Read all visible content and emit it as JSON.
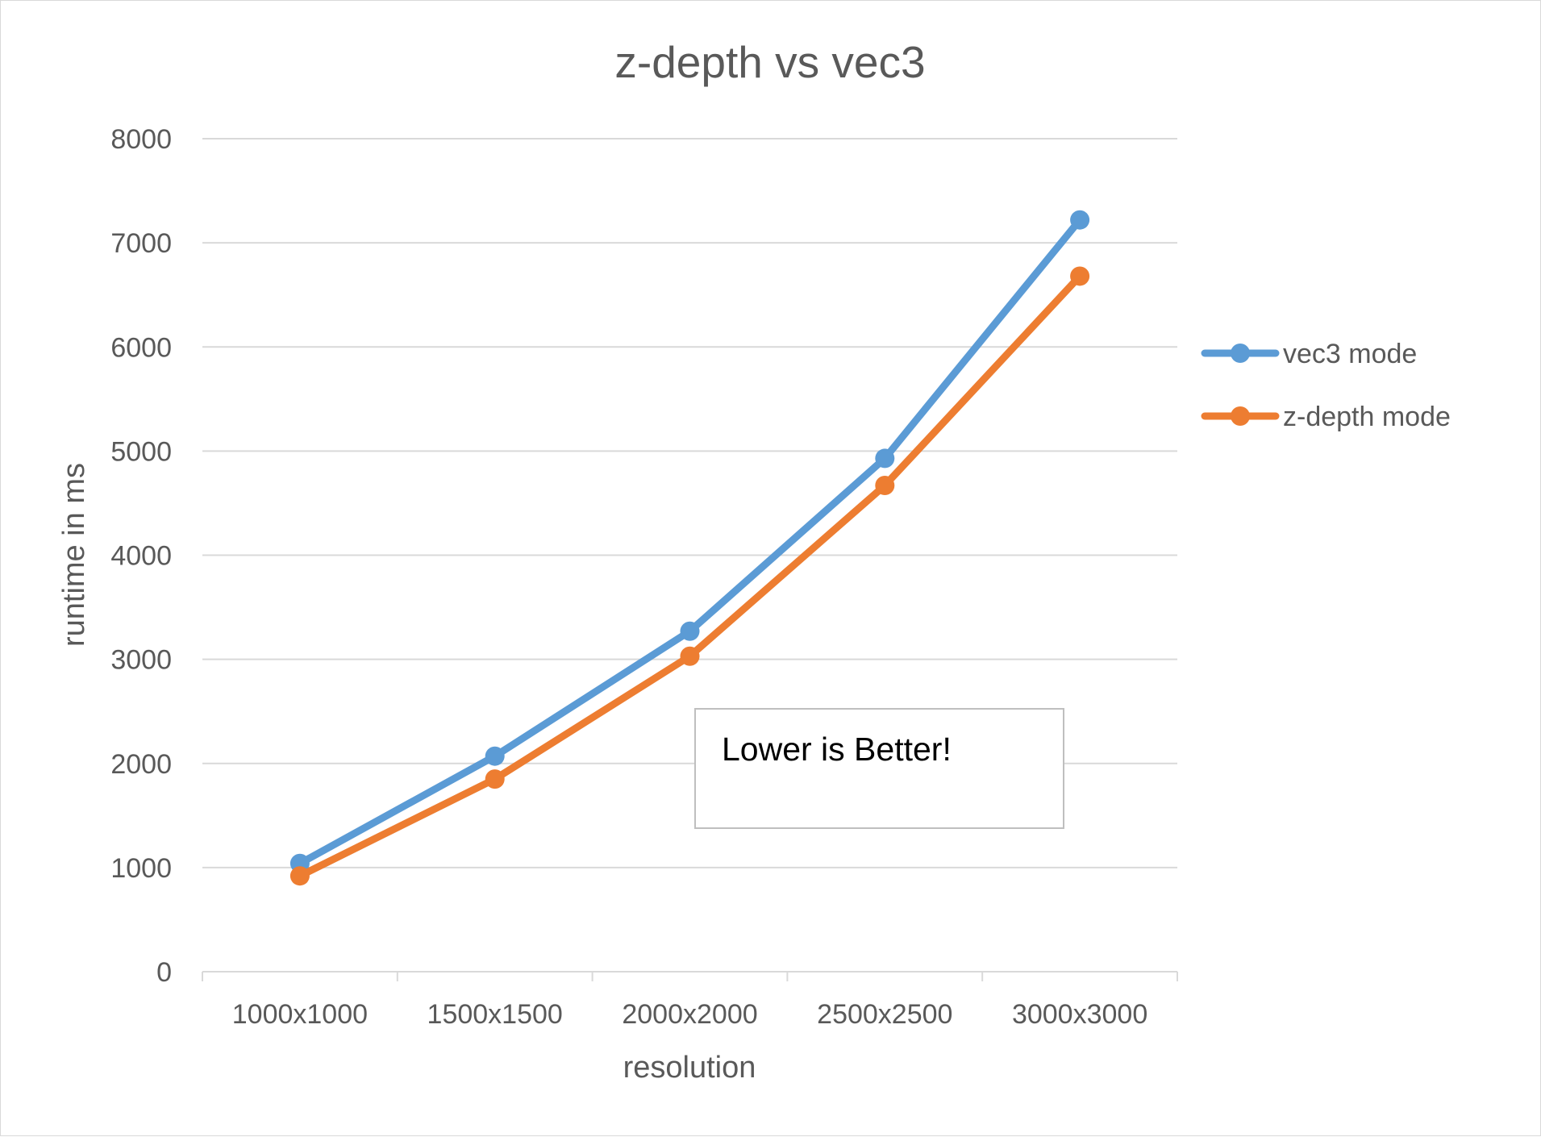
{
  "chart_data": {
    "type": "line",
    "title": "z-depth vs vec3",
    "xlabel": "resolution",
    "ylabel": "runtime in ms",
    "categories": [
      "1000x1000",
      "1500x1500",
      "2000x2000",
      "2500x2500",
      "3000x3000"
    ],
    "series": [
      {
        "name": "vec3 mode",
        "color": "#5b9bd5",
        "values": [
          1040,
          2070,
          3270,
          4930,
          7220
        ]
      },
      {
        "name": "z-depth mode",
        "color": "#ed7d31",
        "values": [
          920,
          1850,
          3030,
          4670,
          6680
        ]
      }
    ],
    "ylim": [
      0,
      8000
    ],
    "yticks": [
      0,
      1000,
      2000,
      3000,
      4000,
      5000,
      6000,
      7000,
      8000
    ],
    "grid": true,
    "legend_position": "right",
    "annotation": "Lower is Better!"
  }
}
